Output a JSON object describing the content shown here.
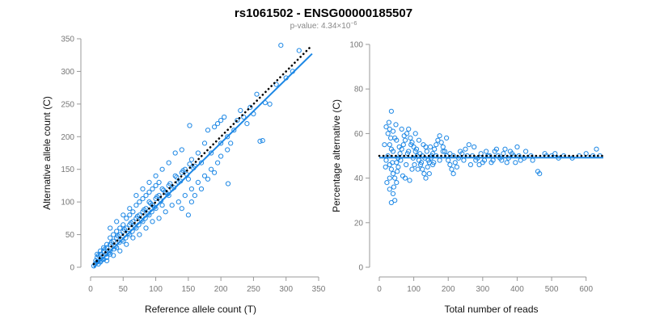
{
  "figure": {
    "title": "rs1061502 - ENSG00000185507",
    "subtitle_prefix": "p-value: 4.34×10",
    "subtitle_exp": "−6"
  },
  "colors": {
    "points": "#1e88e5",
    "fit_line": "#1e88e5",
    "reference_line": "#000000"
  },
  "chart_data": [
    {
      "type": "scatter",
      "xlabel": "Reference allele count (T)",
      "ylabel": "Alternative allele count (C)",
      "xlim": [
        0,
        350
      ],
      "ylim": [
        0,
        350
      ],
      "xticks": [
        0,
        50,
        100,
        150,
        200,
        250,
        300,
        350
      ],
      "yticks": [
        0,
        50,
        100,
        150,
        200,
        250,
        300,
        350
      ],
      "grid": false,
      "lines": [
        {
          "style": "solid",
          "color": "#1e88e5",
          "x": [
            5,
            340
          ],
          "y": [
            0,
            327
          ]
        },
        {
          "style": "dotted",
          "color": "#000000",
          "x": [
            5,
            340
          ],
          "y": [
            5,
            340
          ]
        }
      ],
      "points": [
        [
          292,
          340
        ],
        [
          320,
          332
        ],
        [
          260,
          193
        ],
        [
          264,
          194
        ],
        [
          211,
          128
        ],
        [
          152,
          217
        ],
        [
          275,
          250
        ],
        [
          268,
          252
        ],
        [
          245,
          245
        ],
        [
          205,
          230
        ],
        [
          200,
          225
        ],
        [
          195,
          220
        ],
        [
          190,
          215
        ],
        [
          180,
          210
        ],
        [
          230,
          240
        ],
        [
          255,
          265
        ],
        [
          225,
          225
        ],
        [
          210,
          200
        ],
        [
          220,
          210
        ],
        [
          200,
          190
        ],
        [
          185,
          175
        ],
        [
          175,
          190
        ],
        [
          165,
          175
        ],
        [
          160,
          155
        ],
        [
          170,
          160
        ],
        [
          155,
          165
        ],
        [
          145,
          150
        ],
        [
          150,
          135
        ],
        [
          140,
          145
        ],
        [
          135,
          130
        ],
        [
          130,
          140
        ],
        [
          125,
          120
        ],
        [
          120,
          125
        ],
        [
          115,
          115
        ],
        [
          110,
          120
        ],
        [
          105,
          110
        ],
        [
          100,
          105
        ],
        [
          95,
          95
        ],
        [
          90,
          100
        ],
        [
          85,
          90
        ],
        [
          80,
          85
        ],
        [
          75,
          80
        ],
        [
          70,
          75
        ],
        [
          65,
          70
        ],
        [
          60,
          65
        ],
        [
          55,
          60
        ],
        [
          50,
          55
        ],
        [
          45,
          50
        ],
        [
          40,
          45
        ],
        [
          35,
          40
        ],
        [
          30,
          35
        ],
        [
          25,
          30
        ],
        [
          20,
          25
        ],
        [
          15,
          20
        ],
        [
          10,
          15
        ],
        [
          8,
          10
        ],
        [
          12,
          18
        ],
        [
          18,
          12
        ],
        [
          22,
          28
        ],
        [
          28,
          22
        ],
        [
          32,
          38
        ],
        [
          38,
          32
        ],
        [
          42,
          48
        ],
        [
          48,
          42
        ],
        [
          52,
          58
        ],
        [
          58,
          52
        ],
        [
          62,
          68
        ],
        [
          68,
          62
        ],
        [
          72,
          78
        ],
        [
          78,
          72
        ],
        [
          82,
          88
        ],
        [
          88,
          82
        ],
        [
          92,
          98
        ],
        [
          98,
          92
        ],
        [
          102,
          108
        ],
        [
          108,
          102
        ],
        [
          112,
          118
        ],
        [
          118,
          112
        ],
        [
          122,
          128
        ],
        [
          128,
          122
        ],
        [
          132,
          138
        ],
        [
          138,
          132
        ],
        [
          142,
          148
        ],
        [
          148,
          142
        ],
        [
          152,
          158
        ],
        [
          158,
          152
        ],
        [
          30,
          60
        ],
        [
          40,
          70
        ],
        [
          50,
          80
        ],
        [
          60,
          90
        ],
        [
          70,
          110
        ],
        [
          80,
          120
        ],
        [
          90,
          130
        ],
        [
          100,
          140
        ],
        [
          110,
          150
        ],
        [
          120,
          160
        ],
        [
          130,
          175
        ],
        [
          140,
          180
        ],
        [
          25,
          10
        ],
        [
          35,
          18
        ],
        [
          45,
          25
        ],
        [
          55,
          35
        ],
        [
          65,
          45
        ],
        [
          75,
          50
        ],
        [
          85,
          60
        ],
        [
          95,
          70
        ],
        [
          105,
          75
        ],
        [
          115,
          85
        ],
        [
          125,
          95
        ],
        [
          135,
          100
        ],
        [
          145,
          110
        ],
        [
          155,
          120
        ],
        [
          165,
          130
        ],
        [
          175,
          140
        ],
        [
          185,
          150
        ],
        [
          195,
          160
        ],
        [
          15,
          8
        ],
        [
          20,
          12
        ],
        [
          25,
          15
        ],
        [
          30,
          20
        ],
        [
          10,
          20
        ],
        [
          15,
          25
        ],
        [
          20,
          30
        ],
        [
          25,
          35
        ],
        [
          30,
          45
        ],
        [
          35,
          50
        ],
        [
          40,
          55
        ],
        [
          45,
          60
        ],
        [
          50,
          65
        ],
        [
          55,
          75
        ],
        [
          60,
          80
        ],
        [
          65,
          85
        ],
        [
          70,
          95
        ],
        [
          75,
          100
        ],
        [
          80,
          105
        ],
        [
          85,
          110
        ],
        [
          90,
          115
        ],
        [
          95,
          120
        ],
        [
          100,
          125
        ],
        [
          105,
          130
        ],
        [
          150,
          80
        ],
        [
          140,
          90
        ],
        [
          155,
          100
        ],
        [
          160,
          110
        ],
        [
          170,
          120
        ],
        [
          180,
          135
        ],
        [
          190,
          145
        ],
        [
          200,
          170
        ],
        [
          210,
          180
        ],
        [
          215,
          190
        ],
        [
          235,
          230
        ],
        [
          240,
          220
        ],
        [
          250,
          235
        ],
        [
          285,
          280
        ],
        [
          300,
          290
        ],
        [
          310,
          300
        ],
        [
          120,
          110
        ],
        [
          110,
          95
        ],
        [
          100,
          90
        ],
        [
          90,
          80
        ],
        [
          80,
          70
        ],
        [
          70,
          60
        ],
        [
          60,
          50
        ],
        [
          50,
          40
        ],
        [
          40,
          30
        ],
        [
          30,
          25
        ],
        [
          20,
          18
        ],
        [
          10,
          8
        ],
        [
          5,
          2
        ],
        [
          7,
          5
        ],
        [
          12,
          5
        ],
        [
          16,
          10
        ],
        [
          24,
          20
        ],
        [
          36,
          28
        ],
        [
          44,
          38
        ],
        [
          54,
          45
        ],
        [
          64,
          55
        ],
        [
          74,
          65
        ],
        [
          84,
          75
        ],
        [
          94,
          85
        ]
      ]
    },
    {
      "type": "scatter",
      "xlabel": "Total number of reads",
      "ylabel": "Percentage alternative (C)",
      "xlim": [
        0,
        650
      ],
      "ylim": [
        0,
        100
      ],
      "xticks": [
        0,
        100,
        200,
        300,
        400,
        500,
        600
      ],
      "yticks": [
        0,
        20,
        40,
        60,
        80,
        100
      ],
      "grid": false,
      "lines": [
        {
          "style": "solid",
          "color": "#1e88e5",
          "x": [
            0,
            650
          ],
          "y": [
            49.2,
            49.2
          ]
        },
        {
          "style": "dotted",
          "color": "#000000",
          "x": [
            0,
            650
          ],
          "y": [
            50,
            50
          ]
        }
      ],
      "points": [
        [
          35,
          70
        ],
        [
          20,
          63
        ],
        [
          25,
          60
        ],
        [
          30,
          62
        ],
        [
          40,
          61
        ],
        [
          45,
          58
        ],
        [
          50,
          57
        ],
        [
          30,
          55
        ],
        [
          35,
          53
        ],
        [
          40,
          52
        ],
        [
          25,
          50
        ],
        [
          20,
          48
        ],
        [
          30,
          46
        ],
        [
          35,
          44
        ],
        [
          40,
          42
        ],
        [
          45,
          40
        ],
        [
          50,
          38
        ],
        [
          30,
          35
        ],
        [
          40,
          33
        ],
        [
          35,
          29
        ],
        [
          45,
          30
        ],
        [
          50,
          47
        ],
        [
          55,
          49
        ],
        [
          60,
          51
        ],
        [
          65,
          53
        ],
        [
          70,
          55
        ],
        [
          75,
          57
        ],
        [
          80,
          60
        ],
        [
          85,
          62
        ],
        [
          90,
          58
        ],
        [
          95,
          56
        ],
        [
          100,
          54
        ],
        [
          105,
          52
        ],
        [
          110,
          50
        ],
        [
          115,
          48
        ],
        [
          120,
          46
        ],
        [
          125,
          44
        ],
        [
          130,
          42
        ],
        [
          135,
          40
        ],
        [
          140,
          45
        ],
        [
          145,
          47
        ],
        [
          150,
          49
        ],
        [
          155,
          51
        ],
        [
          160,
          53
        ],
        [
          165,
          55
        ],
        [
          170,
          57
        ],
        [
          175,
          59
        ],
        [
          180,
          56
        ],
        [
          185,
          54
        ],
        [
          190,
          52
        ],
        [
          195,
          50
        ],
        [
          200,
          48
        ],
        [
          205,
          46
        ],
        [
          210,
          44
        ],
        [
          215,
          42
        ],
        [
          220,
          47
        ],
        [
          230,
          49
        ],
        [
          240,
          51
        ],
        [
          250,
          53
        ],
        [
          260,
          55
        ],
        [
          270,
          50
        ],
        [
          280,
          48
        ],
        [
          290,
          46
        ],
        [
          300,
          47
        ],
        [
          310,
          52
        ],
        [
          320,
          50
        ],
        [
          330,
          48
        ],
        [
          340,
          53
        ],
        [
          350,
          49
        ],
        [
          360,
          51
        ],
        [
          370,
          47
        ],
        [
          380,
          52
        ],
        [
          390,
          50
        ],
        [
          400,
          54
        ],
        [
          410,
          48
        ],
        [
          420,
          49
        ],
        [
          440,
          50
        ],
        [
          460,
          43
        ],
        [
          480,
          51
        ],
        [
          500,
          50
        ],
        [
          520,
          49
        ],
        [
          640,
          50
        ],
        [
          630,
          53
        ],
        [
          30,
          40
        ],
        [
          55,
          45
        ],
        [
          65,
          62
        ],
        [
          75,
          40
        ],
        [
          85,
          52
        ],
        [
          95,
          44
        ],
        [
          105,
          60
        ],
        [
          115,
          57
        ],
        [
          125,
          50
        ],
        [
          135,
          54
        ],
        [
          145,
          42
        ],
        [
          155,
          46
        ],
        [
          165,
          50
        ],
        [
          175,
          48
        ],
        [
          185,
          52
        ],
        [
          195,
          58
        ],
        [
          205,
          51
        ],
        [
          215,
          50
        ],
        [
          225,
          45
        ],
        [
          235,
          52
        ],
        [
          245,
          48
        ],
        [
          255,
          50
        ],
        [
          265,
          46
        ],
        [
          275,
          54
        ],
        [
          285,
          49
        ],
        [
          295,
          51
        ],
        [
          305,
          48
        ],
        [
          315,
          50
        ],
        [
          325,
          47
        ],
        [
          335,
          52
        ],
        [
          345,
          50
        ],
        [
          355,
          48
        ],
        [
          365,
          53
        ],
        [
          375,
          49
        ],
        [
          385,
          51
        ],
        [
          395,
          47
        ],
        [
          405,
          50
        ],
        [
          425,
          52
        ],
        [
          445,
          48
        ],
        [
          465,
          42
        ],
        [
          485,
          50
        ],
        [
          510,
          51
        ],
        [
          535,
          50
        ],
        [
          560,
          49
        ],
        [
          580,
          50
        ],
        [
          600,
          51
        ],
        [
          620,
          50
        ],
        [
          15,
          55
        ],
        [
          18,
          45
        ],
        [
          22,
          38
        ],
        [
          28,
          65
        ],
        [
          33,
          58
        ],
        [
          38,
          47
        ],
        [
          42,
          36
        ],
        [
          48,
          64
        ],
        [
          52,
          43
        ],
        [
          58,
          54
        ],
        [
          62,
          48
        ],
        [
          68,
          41
        ],
        [
          72,
          59
        ],
        [
          78,
          46
        ],
        [
          82,
          51
        ],
        [
          88,
          39
        ],
        [
          92,
          55
        ],
        [
          98,
          49
        ],
        [
          102,
          46
        ],
        [
          108,
          53
        ],
        [
          112,
          44
        ],
        [
          118,
          51
        ],
        [
          122,
          47
        ],
        [
          128,
          55
        ],
        [
          132,
          49
        ],
        [
          138,
          52
        ],
        [
          142,
          48
        ],
        [
          148,
          54
        ],
        [
          152,
          50
        ],
        [
          158,
          47
        ]
      ]
    }
  ]
}
